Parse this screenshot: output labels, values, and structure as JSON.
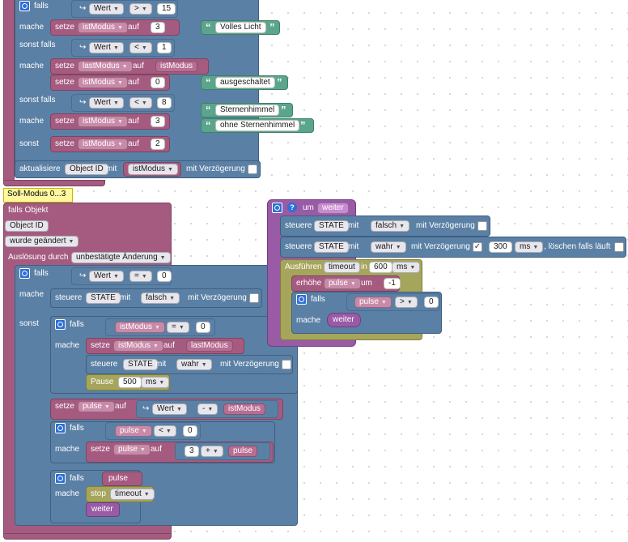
{
  "kw": {
    "falls": "falls",
    "mache": "mache",
    "sonst_falls": "sonst falls",
    "sonst": "sonst",
    "setze": "setze",
    "auf": "auf",
    "aktualisiere": "aktualisiere",
    "mit": "mit",
    "mit_verzoegerung": "mit Verzögerung",
    "falls_objekt": "falls Objekt",
    "ausloesung_durch": "Auslösung durch",
    "steuere": "steuere",
    "pause": "Pause",
    "um": "um",
    "ausfuehren": "Ausführen",
    "in": "in",
    "erhoehe": "erhöhe",
    "stop": "stop",
    "loeschen": ", löschen falls läuft",
    "quote_open": "“",
    "quote_close": "”",
    "arrow": "↪"
  },
  "vars": {
    "wert": "Wert",
    "istModus": "istModus",
    "lastModus": "lastModus",
    "pulse": "pulse",
    "state": "STATE",
    "timeout": "timeout",
    "weiter": "weiter",
    "object_id": "Object ID"
  },
  "ops": {
    "gt": ">",
    "lt": "<",
    "eq": "=",
    "minus": "-",
    "plus": "+"
  },
  "nums": {
    "n15": "15",
    "n1": "1",
    "n0": "0",
    "n3": "3",
    "n8": "8",
    "n2": "2",
    "n500": "500",
    "n600": "600",
    "n300": "300",
    "nm1": "-1"
  },
  "texts": {
    "volles_licht": "Volles Licht",
    "ausgeschaltet": "ausgeschaltet",
    "sternenhimmel": "Sternenhimmel",
    "ohne_sternenhimmel": "ohne Sternenhimmel"
  },
  "values": {
    "falsch": "falsch",
    "wahr": "wahr",
    "ms": "ms"
  },
  "trigger": {
    "comment": "Soll-Modus 0...3",
    "object_id": "Object ID",
    "event": "wurde geändert",
    "ausloesung": "unbestätigte Änderung"
  },
  "colors": {
    "control": "#5b80a5",
    "variables": "#a55b80",
    "timeouts": "#a5a55b",
    "text": "#5ba58c",
    "functions": "#995ba5",
    "comment": "#fff8a0"
  }
}
